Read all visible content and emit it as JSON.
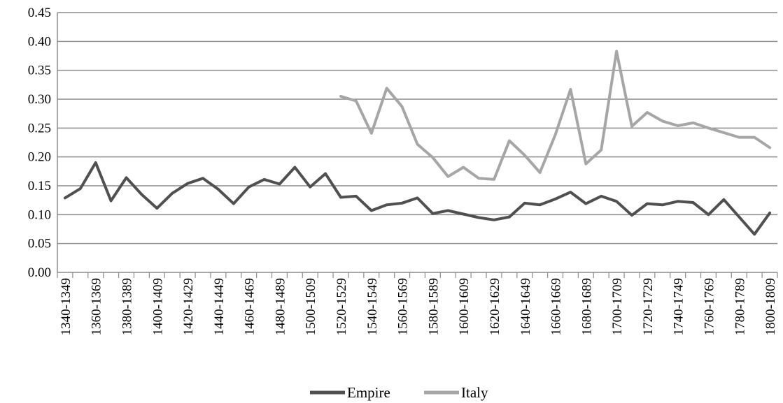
{
  "chart_data": {
    "type": "line",
    "title": "",
    "xlabel": "",
    "ylabel": "",
    "ylim": [
      0,
      0.45
    ],
    "yticks": [
      "0.00",
      "0.05",
      "0.10",
      "0.15",
      "0.20",
      "0.25",
      "0.30",
      "0.35",
      "0.40",
      "0.45"
    ],
    "grid": "horizontal",
    "legend_position": "bottom",
    "categories": [
      "1340-1349",
      "1350-1359",
      "1360-1369",
      "1370-1379",
      "1380-1389",
      "1390-1399",
      "1400-1409",
      "1410-1419",
      "1420-1429",
      "1430-1439",
      "1440-1449",
      "1450-1459",
      "1460-1469",
      "1470-1479",
      "1480-1489",
      "1490-1499",
      "1500-1509",
      "1510-1519",
      "1520-1529",
      "1530-1539",
      "1540-1549",
      "1550-1559",
      "1560-1569",
      "1570-1579",
      "1580-1589",
      "1590-1599",
      "1600-1609",
      "1610-1619",
      "1620-1629",
      "1630-1639",
      "1640-1649",
      "1650-1659",
      "1660-1669",
      "1670-1679",
      "1680-1689",
      "1690-1699",
      "1700-1709",
      "1710-1719",
      "1720-1729",
      "1730-1739",
      "1740-1749",
      "1750-1759",
      "1760-1769",
      "1770-1779",
      "1780-1789",
      "1790-1799",
      "1800-1809"
    ],
    "visible_tick_labels": [
      "1340-1349",
      "1360-1369",
      "1380-1389",
      "1400-1409",
      "1420-1429",
      "1440-1449",
      "1460-1469",
      "1480-1489",
      "1500-1509",
      "1520-1529",
      "1540-1549",
      "1560-1569",
      "1580-1589",
      "1600-1609",
      "1620-1629",
      "1640-1649",
      "1660-1669",
      "1680-1689",
      "1700-1709",
      "1720-1729",
      "1740-1749",
      "1760-1769",
      "1780-1789",
      "1800-1809"
    ],
    "series": [
      {
        "name": "Empire",
        "color": "#505050",
        "values": [
          0.129,
          0.145,
          0.19,
          0.124,
          0.164,
          0.135,
          0.111,
          0.137,
          0.154,
          0.163,
          0.144,
          0.119,
          0.148,
          0.161,
          0.153,
          0.182,
          0.148,
          0.171,
          0.13,
          0.132,
          0.107,
          0.117,
          0.12,
          0.129,
          0.102,
          0.107,
          0.101,
          0.095,
          0.091,
          0.096,
          0.12,
          0.117,
          0.127,
          0.139,
          0.119,
          0.132,
          0.123,
          0.099,
          0.119,
          0.117,
          0.123,
          0.121,
          0.1,
          0.126,
          0.096,
          0.066,
          0.103
        ]
      },
      {
        "name": "Italy",
        "color": "#a6a6a6",
        "values": [
          null,
          null,
          null,
          null,
          null,
          null,
          null,
          null,
          null,
          null,
          null,
          null,
          null,
          null,
          null,
          null,
          null,
          null,
          0.305,
          0.297,
          0.241,
          0.319,
          0.287,
          0.222,
          0.199,
          0.166,
          0.182,
          0.163,
          0.161,
          0.228,
          0.203,
          0.173,
          0.238,
          0.317,
          0.188,
          0.212,
          0.383,
          0.253,
          0.277,
          0.262,
          0.254,
          0.259,
          0.25,
          0.242,
          0.234,
          0.234,
          0.216
        ]
      }
    ]
  }
}
